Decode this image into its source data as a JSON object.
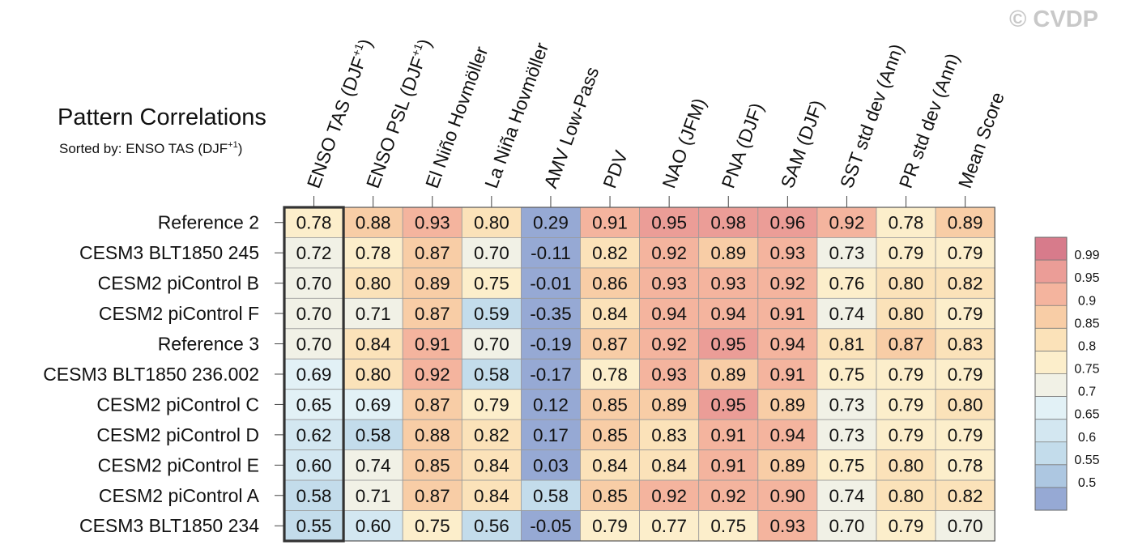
{
  "watermark": "© CVDP",
  "chart_data": {
    "type": "heatmap",
    "title": "Pattern Correlations",
    "subtitle_prefix": "Sorted by: ENSO TAS (DJF",
    "subtitle_sup": "+1",
    "subtitle_suffix": ")",
    "highlighted_column": 0,
    "columns": [
      {
        "label": "ENSO TAS (DJF",
        "sup": "+1",
        "suffix": ")"
      },
      {
        "label": "ENSO PSL (DJF",
        "sup": "+1",
        "suffix": ")"
      },
      {
        "label": "El Niño Hovmöller"
      },
      {
        "label": "La Niña Hovmöller"
      },
      {
        "label": "AMV Low-Pass"
      },
      {
        "label": "PDV"
      },
      {
        "label": "NAO (JFM)"
      },
      {
        "label": "PNA (DJF)"
      },
      {
        "label": "SAM (DJF)"
      },
      {
        "label": "SST std dev (Ann)"
      },
      {
        "label": "PR std dev (Ann)"
      },
      {
        "label": "Mean Score"
      }
    ],
    "rows": [
      "Reference 2",
      "CESM3 BLT1850 245",
      "CESM2 piControl B",
      "CESM2 piControl F",
      "Reference 3",
      "CESM3 BLT1850 236.002",
      "CESM2 piControl C",
      "CESM2 piControl D",
      "CESM2 piControl E",
      "CESM2 piControl A",
      "CESM3 BLT1850 234"
    ],
    "values": [
      [
        "0.78",
        "0.88",
        "0.93",
        "0.80",
        "0.29",
        "0.91",
        "0.95",
        "0.98",
        "0.96",
        "0.92",
        "0.78",
        "0.89"
      ],
      [
        "0.72",
        "0.78",
        "0.87",
        "0.70",
        "-0.11",
        "0.82",
        "0.92",
        "0.89",
        "0.93",
        "0.73",
        "0.79",
        "0.79"
      ],
      [
        "0.70",
        "0.80",
        "0.89",
        "0.75",
        "-0.01",
        "0.86",
        "0.93",
        "0.93",
        "0.92",
        "0.76",
        "0.80",
        "0.82"
      ],
      [
        "0.70",
        "0.71",
        "0.87",
        "0.59",
        "-0.35",
        "0.84",
        "0.94",
        "0.94",
        "0.91",
        "0.74",
        "0.80",
        "0.79"
      ],
      [
        "0.70",
        "0.84",
        "0.91",
        "0.70",
        "-0.19",
        "0.87",
        "0.92",
        "0.95",
        "0.94",
        "0.81",
        "0.87",
        "0.83"
      ],
      [
        "0.69",
        "0.80",
        "0.92",
        "0.58",
        "-0.17",
        "0.78",
        "0.93",
        "0.89",
        "0.91",
        "0.75",
        "0.79",
        "0.79"
      ],
      [
        "0.65",
        "0.69",
        "0.87",
        "0.79",
        "0.12",
        "0.85",
        "0.89",
        "0.95",
        "0.89",
        "0.73",
        "0.79",
        "0.80"
      ],
      [
        "0.62",
        "0.58",
        "0.88",
        "0.82",
        "0.17",
        "0.85",
        "0.83",
        "0.91",
        "0.94",
        "0.73",
        "0.79",
        "0.79"
      ],
      [
        "0.60",
        "0.74",
        "0.85",
        "0.84",
        "0.03",
        "0.84",
        "0.84",
        "0.91",
        "0.89",
        "0.75",
        "0.80",
        "0.78"
      ],
      [
        "0.58",
        "0.71",
        "0.87",
        "0.84",
        "0.58",
        "0.85",
        "0.92",
        "0.92",
        "0.90",
        "0.74",
        "0.80",
        "0.82"
      ],
      [
        "0.55",
        "0.60",
        "0.75",
        "0.56",
        "-0.05",
        "0.79",
        "0.77",
        "0.75",
        "0.93",
        "0.70",
        "0.79",
        "0.70"
      ]
    ],
    "colorbar": {
      "labels": [
        "0.99",
        "0.95",
        "0.9",
        "0.85",
        "0.8",
        "0.75",
        "0.7",
        "0.65",
        "0.6",
        "0.55",
        "0.5"
      ],
      "thresholds": [
        0.5,
        0.55,
        0.6,
        0.65,
        0.7,
        0.75,
        0.8,
        0.85,
        0.9,
        0.95,
        0.99
      ],
      "colors": [
        "#96a9d4",
        "#adc7e1",
        "#c3dceb",
        "#d3e7f1",
        "#e2f1f6",
        "#f1f1e6",
        "#fceecb",
        "#fbe2b9",
        "#f8cda6",
        "#f4b49e",
        "#eb9d97",
        "#d77b8b"
      ]
    }
  }
}
